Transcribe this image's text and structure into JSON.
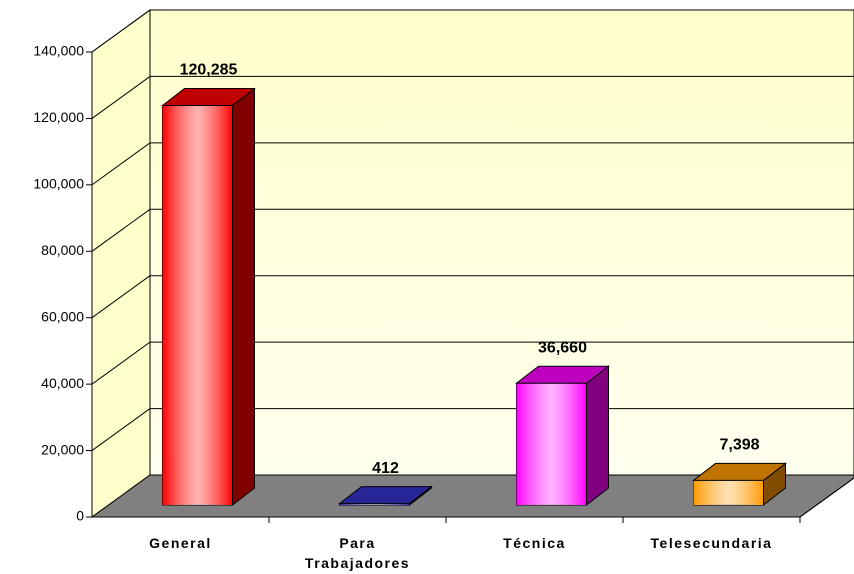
{
  "chart_data": {
    "type": "bar3d",
    "categories": [
      "General",
      "Para Trabajadores",
      "Técnica",
      "Telesecundaria"
    ],
    "values": [
      120285,
      412,
      36660,
      7398
    ],
    "value_labels": [
      "120,285",
      "412",
      "36,660",
      "7,398"
    ],
    "colors": [
      "#ff0000",
      "#3333cc",
      "#ff00ff",
      "#ff9900"
    ],
    "ylim": [
      0,
      140000
    ],
    "yticks": [
      0,
      {
        "value": 20000,
        "label": "20,000"
      },
      {
        "value": 40000,
        "label": "40,000"
      },
      {
        "value": 60000,
        "label": "60,000"
      },
      {
        "value": 80000,
        "label": "80,000"
      },
      {
        "value": 100000,
        "label": "100,000"
      },
      {
        "value": 120000,
        "label": "120,000"
      },
      {
        "value": 140000,
        "label": "140,000"
      }
    ],
    "grid": true
  }
}
